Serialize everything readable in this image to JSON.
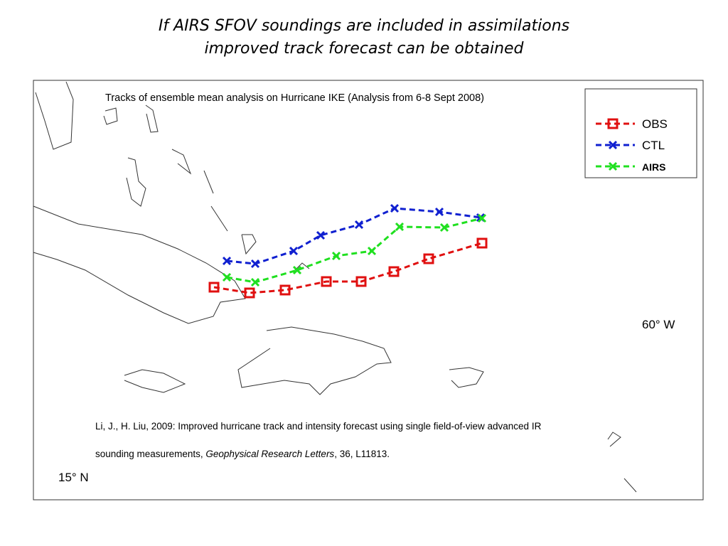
{
  "header": {
    "title_line1": "If AIRS SFOV soundings are included in assimilations",
    "title_line2": "improved track forecast can be obtained"
  },
  "map": {
    "caption": "Tracks of ensemble mean analysis on Hurricane IKE (Analysis from 6-8 Sept 2008)",
    "legend": [
      "OBS",
      "CTL",
      "AIRS"
    ],
    "lon_label": "60° W",
    "lat_label": "15° N"
  },
  "citation": {
    "line1": "Li, J., H. Liu, 2009: Improved hurricane track and intensity forecast using single field-of-view advanced IR",
    "line2_start": "sounding measurements, ",
    "journal": "Geophysical Research Letters",
    "line2_end": ", 36, L11813."
  }
}
